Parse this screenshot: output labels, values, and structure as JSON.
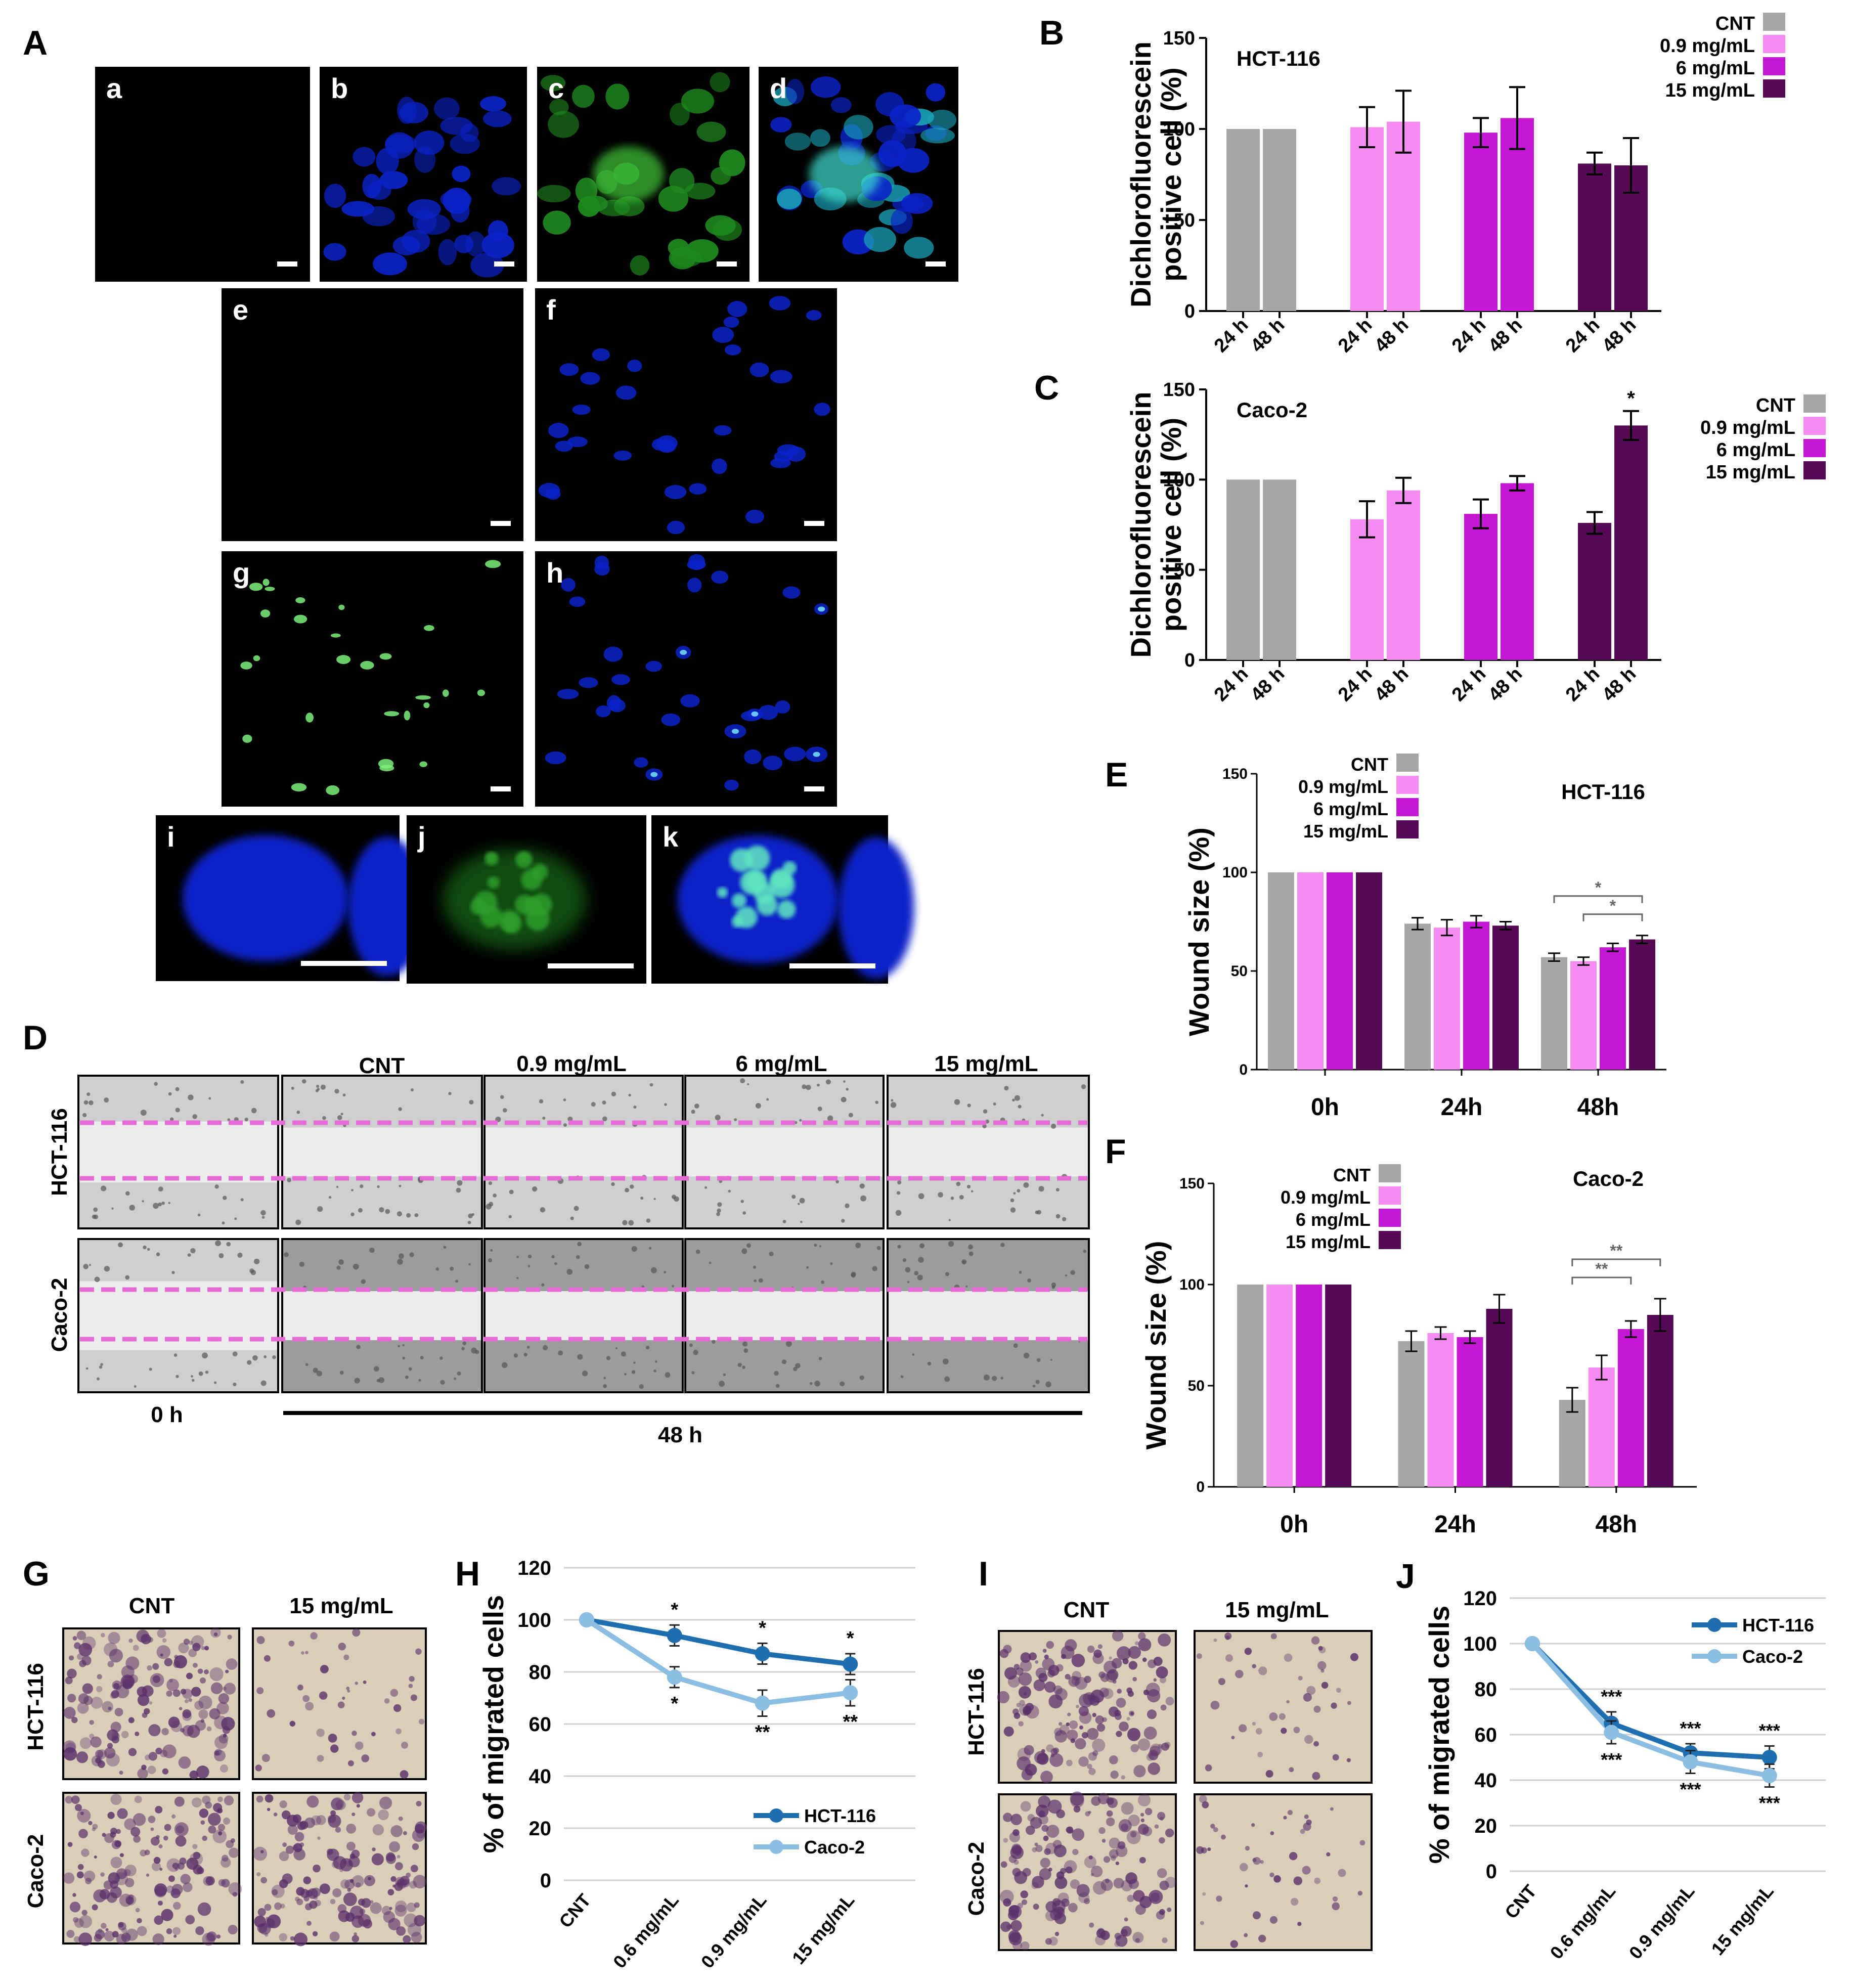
{
  "colors": {
    "cnt": "#a6a6a8",
    "c09": "#f58cf2",
    "c6": "#c517d4",
    "c15": "#560a55",
    "hct_line": "#1f6fb0",
    "caco_line": "#8cbde3",
    "scratch_line": "#e66ad6",
    "fluor_blue": "#0b23c9",
    "fluor_green": "#2fb52a",
    "transwell_bg": "#d9cfb8",
    "transwell_stain": "#5a2f6a"
  },
  "panels": {
    "A": "A",
    "B": "B",
    "C": "C",
    "D": "D",
    "E": "E",
    "F": "F",
    "G": "G",
    "H": "H",
    "I": "I",
    "J": "J"
  },
  "micrographs": {
    "row1": [
      "a",
      "b",
      "c",
      "d"
    ],
    "row2": [
      "e",
      "f"
    ],
    "row3": [
      "g",
      "h"
    ],
    "row4": [
      "i",
      "j",
      "k"
    ]
  },
  "legend_conc": [
    "CNT",
    "0.9 mg/mL",
    "6 mg/mL",
    "15 mg/mL"
  ],
  "wound_panel": {
    "col_headers": [
      "CNT",
      "0.9 mg/mL",
      "6 mg/mL",
      "15 mg/mL"
    ],
    "row_labels": [
      "HCT-116",
      "Caco-2"
    ],
    "time_0": "0 h",
    "time_48": "48 h"
  },
  "transwell": {
    "G": {
      "cols": [
        "CNT",
        "15 mg/mL"
      ],
      "rows": [
        "HCT-116",
        "Caco-2"
      ]
    },
    "I": {
      "cols": [
        "CNT",
        "15 mg/mL"
      ],
      "rows": [
        "HCT-116",
        "Caco-2"
      ]
    }
  },
  "chart_data": [
    {
      "id": "B",
      "type": "bar",
      "title": "HCT-116",
      "ylabel": [
        "Dichlorofluorescein",
        "positive cell (%)"
      ],
      "ylim": [
        0,
        150
      ],
      "yticks": [
        0,
        50,
        100,
        150
      ],
      "groups": [
        "CNT",
        "0.9 mg/mL",
        "6 mg/mL",
        "15 mg/mL"
      ],
      "xtick_labels": [
        "24 h",
        "48 h"
      ],
      "series": [
        {
          "name": "24 h",
          "values": [
            100,
            101,
            98,
            81
          ],
          "errors": [
            0,
            11,
            8,
            6
          ]
        },
        {
          "name": "48 h",
          "values": [
            100,
            104,
            106,
            80
          ],
          "errors": [
            0,
            17,
            17,
            15
          ]
        }
      ],
      "significance": []
    },
    {
      "id": "C",
      "type": "bar",
      "title": "Caco-2",
      "ylabel": [
        "Dichlorofluorescein",
        "positive cell (%)"
      ],
      "ylim": [
        0,
        150
      ],
      "yticks": [
        0,
        50,
        100,
        150
      ],
      "groups": [
        "CNT",
        "0.9 mg/mL",
        "6 mg/mL",
        "15 mg/mL"
      ],
      "xtick_labels": [
        "24 h",
        "48 h"
      ],
      "series": [
        {
          "name": "24 h",
          "values": [
            100,
            78,
            81,
            76
          ],
          "errors": [
            0,
            10,
            8,
            6
          ]
        },
        {
          "name": "48 h",
          "values": [
            100,
            94,
            98,
            130
          ],
          "errors": [
            0,
            7,
            4,
            8
          ]
        }
      ],
      "significance": [
        {
          "group": 3,
          "series": 1,
          "label": "*"
        }
      ]
    },
    {
      "id": "E",
      "type": "bar",
      "title": "HCT-116",
      "ylabel": "Wound size (%)",
      "ylim": [
        0,
        150
      ],
      "yticks": [
        0,
        50,
        100,
        150
      ],
      "categories": [
        "0h",
        "24h",
        "48h"
      ],
      "series": [
        {
          "name": "CNT",
          "values": [
            100,
            74,
            57
          ],
          "errors": [
            0,
            3,
            2
          ]
        },
        {
          "name": "0.9 mg/mL",
          "values": [
            100,
            72,
            55
          ],
          "errors": [
            0,
            4,
            2
          ]
        },
        {
          "name": "6 mg/mL",
          "values": [
            100,
            75,
            62
          ],
          "errors": [
            0,
            3,
            2
          ]
        },
        {
          "name": "15 mg/mL",
          "values": [
            100,
            73,
            66
          ],
          "errors": [
            0,
            2,
            2
          ]
        }
      ],
      "brackets": [
        {
          "from": 0,
          "to": 3,
          "category": 2,
          "label": "*"
        },
        {
          "from": 1,
          "to": 3,
          "category": 2,
          "label": "*"
        }
      ]
    },
    {
      "id": "F",
      "type": "bar",
      "title": "Caco-2",
      "ylabel": "Wound size (%)",
      "ylim": [
        0,
        150
      ],
      "yticks": [
        0,
        50,
        100,
        150
      ],
      "categories": [
        "0h",
        "24h",
        "48h"
      ],
      "series": [
        {
          "name": "CNT",
          "values": [
            100,
            72,
            43
          ],
          "errors": [
            0,
            5,
            6
          ]
        },
        {
          "name": "0.9 mg/mL",
          "values": [
            100,
            76,
            59
          ],
          "errors": [
            0,
            3,
            6
          ]
        },
        {
          "name": "6 mg/mL",
          "values": [
            100,
            74,
            78
          ],
          "errors": [
            0,
            3,
            4
          ]
        },
        {
          "name": "15 mg/mL",
          "values": [
            100,
            88,
            85
          ],
          "errors": [
            0,
            7,
            8
          ]
        }
      ],
      "brackets": [
        {
          "from": 0,
          "to": 2,
          "category": 2,
          "label": "**"
        },
        {
          "from": 0,
          "to": 3,
          "category": 2,
          "label": "**"
        }
      ]
    },
    {
      "id": "H",
      "type": "line",
      "ylabel": "% of migrated cells",
      "ylim": [
        0,
        120
      ],
      "yticks": [
        0,
        20,
        40,
        60,
        80,
        100,
        120
      ],
      "categories": [
        "CNT",
        "0.6 mg/mL",
        "0.9 mg/mL",
        "15 mg/mL"
      ],
      "series": [
        {
          "name": "HCT-116",
          "values": [
            100,
            94,
            87,
            83
          ],
          "errors": [
            0,
            4,
            4,
            4
          ],
          "sig": [
            "",
            "*",
            "*",
            "*"
          ]
        },
        {
          "name": "Caco-2",
          "values": [
            100,
            78,
            68,
            72
          ],
          "errors": [
            0,
            4,
            5,
            5
          ],
          "sig": [
            "",
            "*",
            "**",
            "**"
          ]
        }
      ]
    },
    {
      "id": "J",
      "type": "line",
      "ylabel": "% of migrated cells",
      "ylim": [
        0,
        120
      ],
      "yticks": [
        0,
        20,
        40,
        60,
        80,
        100,
        120
      ],
      "categories": [
        "CNT",
        "0.6 mg/mL",
        "0.9 mg/mL",
        "15 mg/mL"
      ],
      "series": [
        {
          "name": "HCT-116",
          "values": [
            100,
            65,
            52,
            50
          ],
          "errors": [
            0,
            5,
            4,
            5
          ],
          "sig": [
            "",
            "***",
            "***",
            "***"
          ]
        },
        {
          "name": "Caco-2",
          "values": [
            100,
            61,
            48,
            42
          ],
          "errors": [
            0,
            5,
            5,
            5
          ],
          "sig": [
            "",
            "***",
            "***",
            "***"
          ]
        }
      ]
    }
  ]
}
